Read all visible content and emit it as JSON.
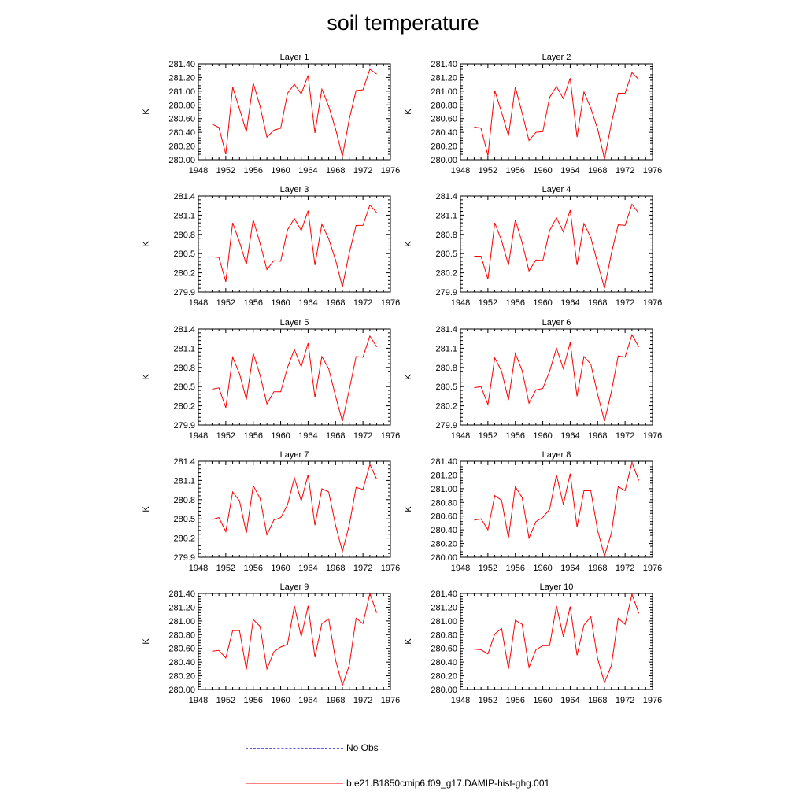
{
  "title": "soil temperature",
  "legend": {
    "obs_label": "No Obs",
    "model_label": "b.e21.B1850cmip6.f09_g17.DAMIP-hist-ghg.001",
    "obs_color": "#5a5ae6",
    "model_color": "#ff0000"
  },
  "chart_data": [
    {
      "type": "line",
      "title": "Layer 1",
      "ylabel": "K",
      "xlim": [
        1948,
        1976
      ],
      "ylim": [
        280.0,
        281.4
      ],
      "xticks": [
        1948,
        1952,
        1956,
        1960,
        1964,
        1968,
        1972,
        1976
      ],
      "yticks": [
        "280.00",
        "280.20",
        "280.40",
        "280.60",
        "280.80",
        "281.00",
        "281.20",
        "281.40"
      ],
      "series": [
        {
          "x": [
            1950,
            1951,
            1952,
            1953,
            1954,
            1955,
            1956,
            1957,
            1958,
            1959,
            1960,
            1961,
            1962,
            1963,
            1964,
            1965,
            1966,
            1967,
            1968,
            1969,
            1970,
            1971,
            1972,
            1973,
            1974
          ],
          "values": [
            280.52,
            280.47,
            280.08,
            281.06,
            280.74,
            280.41,
            281.12,
            280.78,
            280.33,
            280.43,
            280.46,
            280.97,
            281.1,
            280.96,
            281.23,
            280.39,
            281.03,
            280.78,
            280.45,
            280.05,
            280.59,
            281.01,
            281.02,
            281.32,
            281.25
          ]
        }
      ]
    },
    {
      "type": "line",
      "title": "Layer 2",
      "ylabel": "K",
      "xlim": [
        1948,
        1976
      ],
      "ylim": [
        280.0,
        281.4
      ],
      "xticks": [
        1948,
        1952,
        1956,
        1960,
        1964,
        1968,
        1972,
        1976
      ],
      "yticks": [
        "280.00",
        "280.20",
        "280.40",
        "280.60",
        "280.80",
        "281.00",
        "281.20",
        "281.40"
      ],
      "series": [
        {
          "x": [
            1950,
            1951,
            1952,
            1953,
            1954,
            1955,
            1956,
            1957,
            1958,
            1959,
            1960,
            1961,
            1962,
            1963,
            1964,
            1965,
            1966,
            1967,
            1968,
            1969,
            1970,
            1971,
            1972,
            1973,
            1974
          ],
          "values": [
            280.48,
            280.46,
            280.06,
            281.01,
            280.69,
            280.35,
            281.06,
            280.68,
            280.28,
            280.4,
            280.41,
            280.91,
            281.07,
            280.89,
            281.19,
            280.33,
            280.99,
            280.75,
            280.45,
            280.01,
            280.53,
            280.97,
            280.97,
            281.27,
            281.17
          ]
        }
      ]
    },
    {
      "type": "line",
      "title": "Layer 3",
      "ylabel": "K",
      "xlim": [
        1948,
        1976
      ],
      "ylim": [
        279.9,
        281.4
      ],
      "xticks": [
        1948,
        1952,
        1956,
        1960,
        1964,
        1968,
        1972,
        1976
      ],
      "yticks": [
        "279.9",
        "280.2",
        "280.5",
        "280.8",
        "281.1",
        "281.4"
      ],
      "series": [
        {
          "x": [
            1950,
            1951,
            1952,
            1953,
            1954,
            1955,
            1956,
            1957,
            1958,
            1959,
            1960,
            1961,
            1962,
            1963,
            1964,
            1965,
            1966,
            1967,
            1968,
            1969,
            1970,
            1971,
            1972,
            1973,
            1974
          ],
          "values": [
            280.45,
            280.44,
            280.06,
            280.98,
            280.68,
            280.33,
            281.03,
            280.66,
            280.25,
            280.39,
            280.38,
            280.87,
            281.05,
            280.86,
            281.17,
            280.32,
            280.96,
            280.73,
            280.4,
            279.98,
            280.51,
            280.94,
            280.94,
            281.26,
            281.14
          ]
        }
      ]
    },
    {
      "type": "line",
      "title": "Layer 4",
      "ylabel": "K",
      "xlim": [
        1948,
        1976
      ],
      "ylim": [
        279.9,
        281.4
      ],
      "xticks": [
        1948,
        1952,
        1956,
        1960,
        1964,
        1968,
        1972,
        1976
      ],
      "yticks": [
        "279.9",
        "280.2",
        "280.5",
        "280.8",
        "281.1",
        "281.4"
      ],
      "series": [
        {
          "x": [
            1950,
            1951,
            1952,
            1953,
            1954,
            1955,
            1956,
            1957,
            1958,
            1959,
            1960,
            1961,
            1962,
            1963,
            1964,
            1965,
            1966,
            1967,
            1968,
            1969,
            1970,
            1971,
            1972,
            1973,
            1974
          ],
          "values": [
            280.46,
            280.46,
            280.1,
            280.98,
            280.7,
            280.32,
            281.03,
            280.67,
            280.23,
            280.4,
            280.39,
            280.86,
            281.06,
            280.84,
            281.18,
            280.32,
            280.97,
            280.75,
            280.35,
            279.96,
            280.5,
            280.95,
            280.94,
            281.27,
            281.13
          ]
        }
      ]
    },
    {
      "type": "line",
      "title": "Layer 5",
      "ylabel": "K",
      "xlim": [
        1948,
        1976
      ],
      "ylim": [
        279.9,
        281.4
      ],
      "xticks": [
        1948,
        1952,
        1956,
        1960,
        1964,
        1968,
        1972,
        1976
      ],
      "yticks": [
        "279.9",
        "280.2",
        "280.5",
        "280.8",
        "281.1",
        "281.4"
      ],
      "series": [
        {
          "x": [
            1950,
            1951,
            1952,
            1953,
            1954,
            1955,
            1956,
            1957,
            1958,
            1959,
            1960,
            1961,
            1962,
            1963,
            1964,
            1965,
            1966,
            1967,
            1968,
            1969,
            1970,
            1971,
            1972,
            1973,
            1974
          ],
          "values": [
            280.46,
            280.48,
            280.17,
            280.96,
            280.7,
            280.3,
            281.02,
            280.68,
            280.23,
            280.42,
            280.42,
            280.8,
            281.08,
            280.81,
            281.18,
            280.33,
            280.97,
            280.78,
            280.35,
            279.96,
            280.45,
            280.97,
            280.96,
            281.29,
            281.12
          ]
        }
      ]
    },
    {
      "type": "line",
      "title": "Layer 6",
      "ylabel": "K",
      "xlim": [
        1948,
        1976
      ],
      "ylim": [
        279.9,
        281.4
      ],
      "xticks": [
        1948,
        1952,
        1956,
        1960,
        1964,
        1968,
        1972,
        1976
      ],
      "yticks": [
        "279.9",
        "280.2",
        "280.5",
        "280.8",
        "281.1",
        "281.4"
      ],
      "series": [
        {
          "x": [
            1950,
            1951,
            1952,
            1953,
            1954,
            1955,
            1956,
            1957,
            1958,
            1959,
            1960,
            1961,
            1962,
            1963,
            1964,
            1965,
            1966,
            1967,
            1968,
            1969,
            1970,
            1971,
            1972,
            1973,
            1974
          ],
          "values": [
            280.48,
            280.5,
            280.22,
            280.95,
            280.74,
            280.29,
            281.02,
            280.75,
            280.24,
            280.45,
            280.47,
            280.74,
            281.1,
            280.78,
            281.19,
            280.35,
            280.97,
            280.85,
            280.38,
            279.96,
            280.42,
            280.98,
            280.96,
            281.31,
            281.12
          ]
        }
      ]
    },
    {
      "type": "line",
      "title": "Layer 7",
      "ylabel": "K",
      "xlim": [
        1948,
        1976
      ],
      "ylim": [
        279.9,
        281.4
      ],
      "xticks": [
        1948,
        1952,
        1956,
        1960,
        1964,
        1968,
        1972,
        1976
      ],
      "yticks": [
        "279.9",
        "280.2",
        "280.5",
        "280.8",
        "281.1",
        "281.4"
      ],
      "series": [
        {
          "x": [
            1950,
            1951,
            1952,
            1953,
            1954,
            1955,
            1956,
            1957,
            1958,
            1959,
            1960,
            1961,
            1962,
            1963,
            1964,
            1965,
            1966,
            1967,
            1968,
            1969,
            1970,
            1971,
            1972,
            1973,
            1974
          ],
          "values": [
            280.49,
            280.52,
            280.3,
            280.92,
            280.78,
            280.28,
            281.02,
            280.82,
            280.25,
            280.48,
            280.52,
            280.72,
            281.14,
            280.78,
            281.19,
            280.4,
            280.97,
            280.92,
            280.4,
            279.99,
            280.4,
            280.99,
            280.96,
            281.35,
            281.12
          ]
        }
      ]
    },
    {
      "type": "line",
      "title": "Layer 8",
      "ylabel": "K",
      "xlim": [
        1948,
        1976
      ],
      "ylim": [
        280.0,
        281.4
      ],
      "xticks": [
        1948,
        1952,
        1956,
        1960,
        1964,
        1968,
        1972,
        1976
      ],
      "yticks": [
        "280.00",
        "280.20",
        "280.40",
        "280.60",
        "280.80",
        "281.00",
        "281.20",
        "281.40"
      ],
      "series": [
        {
          "x": [
            1950,
            1951,
            1952,
            1953,
            1954,
            1955,
            1956,
            1957,
            1958,
            1959,
            1960,
            1961,
            1962,
            1963,
            1964,
            1965,
            1966,
            1967,
            1968,
            1969,
            1970,
            1971,
            1972,
            1973,
            1974
          ],
          "values": [
            280.54,
            280.56,
            280.4,
            280.9,
            280.83,
            280.28,
            281.03,
            280.87,
            280.28,
            280.52,
            280.58,
            280.7,
            281.2,
            280.77,
            281.22,
            280.44,
            280.97,
            280.97,
            280.39,
            280.02,
            280.35,
            281.03,
            280.97,
            281.38,
            281.12
          ]
        }
      ]
    },
    {
      "type": "line",
      "title": "Layer 9",
      "ylabel": "K",
      "xlim": [
        1948,
        1976
      ],
      "ylim": [
        280.0,
        281.4
      ],
      "xticks": [
        1948,
        1952,
        1956,
        1960,
        1964,
        1968,
        1972,
        1976
      ],
      "yticks": [
        "280.00",
        "280.20",
        "280.40",
        "280.60",
        "280.80",
        "281.00",
        "281.20",
        "281.40"
      ],
      "series": [
        {
          "x": [
            1950,
            1951,
            1952,
            1953,
            1954,
            1955,
            1956,
            1957,
            1958,
            1959,
            1960,
            1961,
            1962,
            1963,
            1964,
            1965,
            1966,
            1967,
            1968,
            1969,
            1970,
            1971,
            1972,
            1973,
            1974
          ],
          "values": [
            280.56,
            280.57,
            280.46,
            280.86,
            280.86,
            280.29,
            281.02,
            280.92,
            280.3,
            280.55,
            280.62,
            280.66,
            281.22,
            280.77,
            281.22,
            280.47,
            280.96,
            281.03,
            280.43,
            280.06,
            280.35,
            281.04,
            280.96,
            281.4,
            281.12
          ]
        }
      ]
    },
    {
      "type": "line",
      "title": "Layer 10",
      "ylabel": "K",
      "xlim": [
        1948,
        1976
      ],
      "ylim": [
        280.0,
        281.4
      ],
      "xticks": [
        1948,
        1952,
        1956,
        1960,
        1964,
        1968,
        1972,
        1976
      ],
      "yticks": [
        "280.00",
        "280.20",
        "280.40",
        "280.60",
        "280.80",
        "281.00",
        "281.20",
        "281.40"
      ],
      "series": [
        {
          "x": [
            1950,
            1951,
            1952,
            1953,
            1954,
            1955,
            1956,
            1957,
            1958,
            1959,
            1960,
            1961,
            1962,
            1963,
            1964,
            1965,
            1966,
            1967,
            1968,
            1969,
            1970,
            1971,
            1972,
            1973,
            1974
          ],
          "values": [
            280.59,
            280.58,
            280.52,
            280.81,
            280.89,
            280.3,
            281.01,
            280.95,
            280.32,
            280.58,
            280.64,
            280.64,
            281.22,
            280.77,
            281.21,
            280.5,
            280.94,
            281.06,
            280.45,
            280.1,
            280.35,
            281.04,
            280.95,
            281.39,
            281.11
          ]
        }
      ]
    }
  ]
}
